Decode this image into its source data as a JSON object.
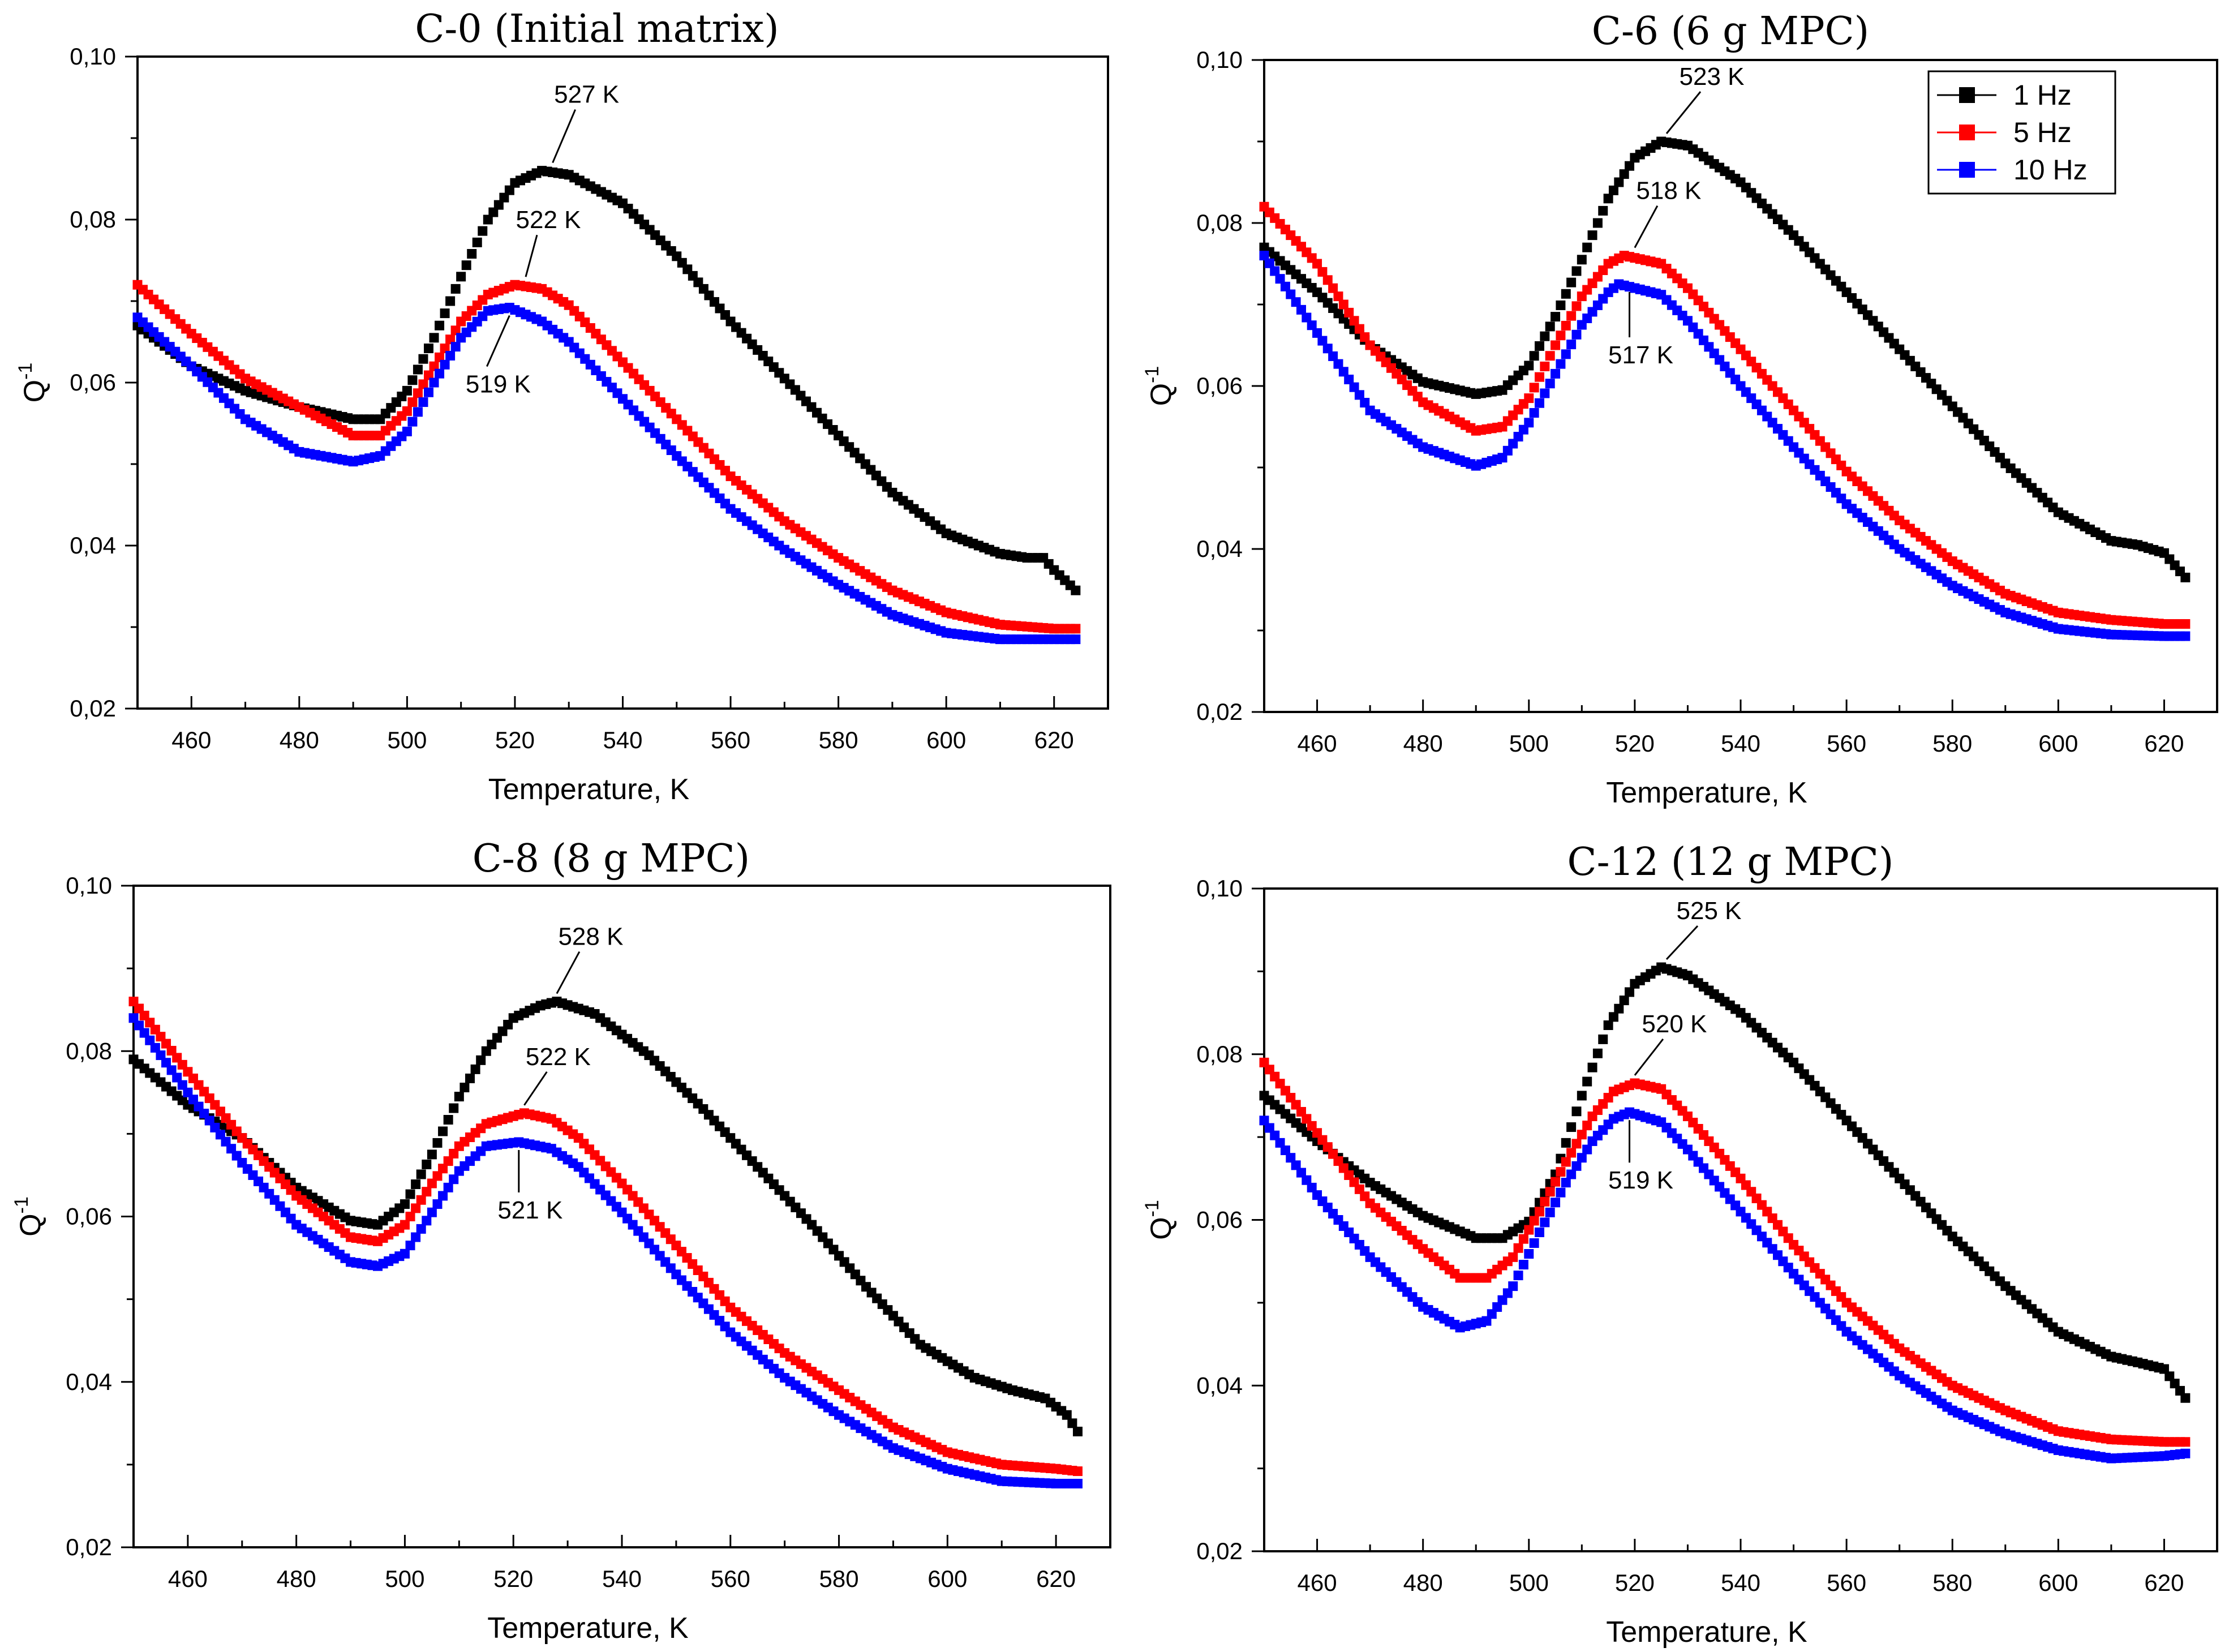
{
  "legend": [
    {
      "label": "1 Hz",
      "color": "#000000"
    },
    {
      "label": "5 Hz",
      "color": "#ff0000"
    },
    {
      "label": "10 Hz",
      "color": "#0000ff"
    }
  ],
  "chart_data": [
    {
      "type": "scatter",
      "title": "C-0 (Initial matrix)",
      "xlabel": "Temperature, K",
      "ylabel_base": "Q",
      "ylabel_sup": "-1",
      "xlim": [
        450,
        630
      ],
      "ylim": [
        0.02,
        0.1
      ],
      "xticks": [
        460,
        480,
        500,
        520,
        540,
        560,
        580,
        600,
        620
      ],
      "yticks": [
        0.02,
        0.04,
        0.06,
        0.08,
        0.1
      ],
      "ytick_labels": [
        "0,02",
        "0,04",
        "0,06",
        "0,08",
        "0,10"
      ],
      "series": [
        {
          "name": "1 Hz",
          "color": "#000000",
          "x": [
            450,
            460,
            470,
            480,
            490,
            495,
            500,
            505,
            510,
            515,
            520,
            525,
            530,
            540,
            550,
            560,
            570,
            580,
            590,
            600,
            610,
            615,
            618,
            620,
            624
          ],
          "y": [
            0.067,
            0.062,
            0.059,
            0.057,
            0.0555,
            0.0555,
            0.059,
            0.0655,
            0.073,
            0.08,
            0.0845,
            0.086,
            0.0855,
            0.082,
            0.0755,
            0.0675,
            0.0605,
            0.0535,
            0.0465,
            0.0415,
            0.039,
            0.0385,
            0.0385,
            0.037,
            0.0345
          ]
        },
        {
          "name": "5 Hz",
          "color": "#ff0000",
          "x": [
            450,
            460,
            470,
            480,
            490,
            495,
            500,
            505,
            510,
            515,
            520,
            525,
            530,
            540,
            550,
            560,
            570,
            580,
            590,
            600,
            610,
            620,
            624
          ],
          "y": [
            0.072,
            0.066,
            0.0605,
            0.057,
            0.0535,
            0.0535,
            0.0565,
            0.062,
            0.0675,
            0.0708,
            0.072,
            0.0715,
            0.0695,
            0.0625,
            0.0555,
            0.0485,
            0.043,
            0.0385,
            0.0345,
            0.0318,
            0.0303,
            0.0298,
            0.0298
          ]
        },
        {
          "name": "10 Hz",
          "color": "#0000ff",
          "x": [
            450,
            460,
            470,
            480,
            490,
            495,
            500,
            505,
            510,
            515,
            519,
            525,
            530,
            540,
            550,
            560,
            570,
            580,
            590,
            600,
            610,
            620,
            624
          ],
          "y": [
            0.068,
            0.062,
            0.0555,
            0.0515,
            0.0503,
            0.051,
            0.054,
            0.06,
            0.0655,
            0.0688,
            0.0692,
            0.0675,
            0.065,
            0.058,
            0.051,
            0.0445,
            0.0395,
            0.0352,
            0.0315,
            0.0293,
            0.0285,
            0.0285,
            0.0285
          ]
        }
      ],
      "annotations": [
        {
          "text": "527 K",
          "x": 527,
          "y": 0.086,
          "color": "#000000"
        },
        {
          "text": "522 K",
          "x": 522,
          "y": 0.072,
          "color": "#ff0000"
        },
        {
          "text": "519 K",
          "x": 519,
          "y": 0.0692,
          "color": "#0000ff"
        }
      ]
    },
    {
      "type": "scatter",
      "title": "C-6 (6 g MPC)",
      "xlabel": "Temperature, K",
      "ylabel_base": "Q",
      "ylabel_sup": "-1",
      "xlim": [
        450,
        630
      ],
      "ylim": [
        0.02,
        0.1
      ],
      "xticks": [
        460,
        480,
        500,
        520,
        540,
        560,
        580,
        600,
        620
      ],
      "yticks": [
        0.02,
        0.04,
        0.06,
        0.08,
        0.1
      ],
      "ytick_labels": [
        "0,02",
        "0,04",
        "0,06",
        "0,08",
        "0,10"
      ],
      "series": [
        {
          "name": "1 Hz",
          "color": "#000000",
          "x": [
            450,
            460,
            470,
            480,
            490,
            495,
            500,
            505,
            510,
            515,
            520,
            525,
            530,
            540,
            550,
            560,
            570,
            580,
            590,
            600,
            610,
            615,
            620,
            624
          ],
          "y": [
            0.077,
            0.0715,
            0.065,
            0.0605,
            0.059,
            0.0595,
            0.0625,
            0.0685,
            0.0755,
            0.083,
            0.088,
            0.09,
            0.0895,
            0.085,
            0.0785,
            0.0715,
            0.0645,
            0.0575,
            0.0505,
            0.0445,
            0.041,
            0.0405,
            0.0395,
            0.0365
          ]
        },
        {
          "name": "5 Hz",
          "color": "#ff0000",
          "x": [
            450,
            460,
            470,
            480,
            490,
            495,
            500,
            505,
            510,
            515,
            518,
            525,
            530,
            540,
            550,
            560,
            570,
            580,
            590,
            600,
            610,
            620,
            624
          ],
          "y": [
            0.082,
            0.075,
            0.065,
            0.058,
            0.0545,
            0.055,
            0.0585,
            0.065,
            0.071,
            0.075,
            0.076,
            0.075,
            0.072,
            0.0645,
            0.057,
            0.0495,
            0.0435,
            0.0385,
            0.0345,
            0.0322,
            0.0313,
            0.0308,
            0.0308
          ]
        },
        {
          "name": "10 Hz",
          "color": "#0000ff",
          "x": [
            450,
            460,
            470,
            480,
            490,
            495,
            500,
            505,
            510,
            515,
            517,
            525,
            530,
            540,
            550,
            560,
            570,
            580,
            590,
            600,
            610,
            620,
            624
          ],
          "y": [
            0.076,
            0.0665,
            0.057,
            0.0525,
            0.0502,
            0.0512,
            0.0555,
            0.0615,
            0.0675,
            0.0715,
            0.0725,
            0.0712,
            0.068,
            0.06,
            0.0525,
            0.0455,
            0.04,
            0.0355,
            0.0322,
            0.0302,
            0.0295,
            0.0293,
            0.0293
          ]
        }
      ],
      "annotations": [
        {
          "text": "523 K",
          "x": 526,
          "y": 0.09,
          "color": "#000000"
        },
        {
          "text": "518 K",
          "x": 520,
          "y": 0.076,
          "color": "#ff0000"
        },
        {
          "text": "517 K",
          "x": 519,
          "y": 0.0725,
          "color": "#0000ff"
        }
      ]
    },
    {
      "type": "scatter",
      "title": "C-8 (8 g MPC)",
      "xlabel": "Temperature, K",
      "ylabel_base": "Q",
      "ylabel_sup": "-1",
      "xlim": [
        450,
        630
      ],
      "ylim": [
        0.02,
        0.1
      ],
      "xticks": [
        460,
        480,
        500,
        520,
        540,
        560,
        580,
        600,
        620
      ],
      "yticks": [
        0.02,
        0.04,
        0.06,
        0.08,
        0.1
      ],
      "ytick_labels": [
        "0,02",
        "0,04",
        "0,06",
        "0,08",
        "0,10"
      ],
      "series": [
        {
          "name": "1 Hz",
          "color": "#000000",
          "x": [
            450,
            460,
            470,
            480,
            490,
            495,
            500,
            505,
            510,
            515,
            520,
            525,
            528,
            535,
            545,
            555,
            565,
            575,
            585,
            595,
            605,
            612,
            618,
            622,
            624
          ],
          "y": [
            0.079,
            0.0735,
            0.0695,
            0.0635,
            0.0595,
            0.059,
            0.0615,
            0.0675,
            0.0745,
            0.08,
            0.084,
            0.0855,
            0.086,
            0.0845,
            0.0795,
            0.073,
            0.066,
            0.059,
            0.0515,
            0.0445,
            0.0405,
            0.039,
            0.038,
            0.036,
            0.034
          ]
        },
        {
          "name": "5 Hz",
          "color": "#ff0000",
          "x": [
            450,
            460,
            470,
            480,
            490,
            495,
            500,
            505,
            510,
            515,
            522,
            527,
            532,
            540,
            550,
            560,
            570,
            580,
            590,
            600,
            610,
            620,
            624
          ],
          "y": [
            0.086,
            0.0775,
            0.0695,
            0.0625,
            0.0575,
            0.057,
            0.059,
            0.064,
            0.0685,
            0.0712,
            0.0725,
            0.0718,
            0.0695,
            0.064,
            0.0565,
            0.049,
            0.0435,
            0.039,
            0.0345,
            0.0315,
            0.03,
            0.0295,
            0.0292
          ]
        },
        {
          "name": "10 Hz",
          "color": "#0000ff",
          "x": [
            450,
            460,
            470,
            480,
            490,
            495,
            500,
            505,
            510,
            515,
            521,
            527,
            532,
            540,
            550,
            560,
            570,
            580,
            590,
            600,
            610,
            620,
            624
          ],
          "y": [
            0.084,
            0.075,
            0.0665,
            0.059,
            0.0545,
            0.054,
            0.0555,
            0.0605,
            0.0655,
            0.0685,
            0.069,
            0.0682,
            0.066,
            0.0605,
            0.053,
            0.046,
            0.0405,
            0.036,
            0.032,
            0.0295,
            0.028,
            0.0277,
            0.0277
          ]
        }
      ],
      "annotations": [
        {
          "text": "528 K",
          "x": 528,
          "y": 0.086,
          "color": "#000000"
        },
        {
          "text": "522 K",
          "x": 522,
          "y": 0.0725,
          "color": "#ff0000"
        },
        {
          "text": "521 K",
          "x": 521,
          "y": 0.069,
          "color": "#0000ff"
        }
      ]
    },
    {
      "type": "scatter",
      "title": "C-12 (12 g MPC)",
      "xlabel": "Temperature, K",
      "ylabel_base": "Q",
      "ylabel_sup": "-1",
      "xlim": [
        450,
        630
      ],
      "ylim": [
        0.02,
        0.1
      ],
      "xticks": [
        460,
        480,
        500,
        520,
        540,
        560,
        580,
        600,
        620
      ],
      "yticks": [
        0.02,
        0.04,
        0.06,
        0.08,
        0.1
      ],
      "ytick_labels": [
        "0,02",
        "0,04",
        "0,06",
        "0,08",
        "0,10"
      ],
      "series": [
        {
          "name": "1 Hz",
          "color": "#000000",
          "x": [
            450,
            460,
            470,
            480,
            490,
            495,
            500,
            505,
            510,
            515,
            520,
            525,
            530,
            540,
            550,
            560,
            570,
            580,
            590,
            600,
            610,
            615,
            620,
            624
          ],
          "y": [
            0.075,
            0.0695,
            0.0645,
            0.0605,
            0.0578,
            0.0578,
            0.0598,
            0.0655,
            0.075,
            0.0835,
            0.0885,
            0.0905,
            0.0895,
            0.085,
            0.079,
            0.072,
            0.065,
            0.058,
            0.052,
            0.0465,
            0.0435,
            0.0428,
            0.042,
            0.0385
          ]
        },
        {
          "name": "5 Hz",
          "color": "#ff0000",
          "x": [
            450,
            460,
            470,
            480,
            487,
            492,
            497,
            502,
            507,
            512,
            516,
            520,
            525,
            530,
            540,
            550,
            560,
            570,
            580,
            590,
            600,
            610,
            620,
            624
          ],
          "y": [
            0.079,
            0.0705,
            0.062,
            0.0565,
            0.053,
            0.053,
            0.0555,
            0.061,
            0.067,
            0.0725,
            0.0755,
            0.0765,
            0.0758,
            0.0725,
            0.065,
            0.057,
            0.05,
            0.0445,
            0.04,
            0.037,
            0.0345,
            0.0335,
            0.0332,
            0.0332
          ]
        },
        {
          "name": "10 Hz",
          "color": "#0000ff",
          "x": [
            450,
            460,
            470,
            480,
            487,
            492,
            497,
            502,
            507,
            512,
            516,
            519,
            525,
            530,
            540,
            550,
            560,
            570,
            580,
            590,
            600,
            610,
            620,
            624
          ],
          "y": [
            0.072,
            0.063,
            0.0555,
            0.0495,
            0.047,
            0.0478,
            0.052,
            0.0585,
            0.0645,
            0.0695,
            0.0722,
            0.073,
            0.0718,
            0.0685,
            0.061,
            0.0535,
            0.0465,
            0.0412,
            0.037,
            0.0342,
            0.0322,
            0.0312,
            0.0315,
            0.0318
          ]
        }
      ],
      "annotations": [
        {
          "text": "525 K",
          "x": 526,
          "y": 0.0905,
          "color": "#000000"
        },
        {
          "text": "520 K",
          "x": 520,
          "y": 0.0765,
          "color": "#ff0000"
        },
        {
          "text": "519 K",
          "x": 519,
          "y": 0.073,
          "color": "#0000ff"
        }
      ]
    }
  ]
}
